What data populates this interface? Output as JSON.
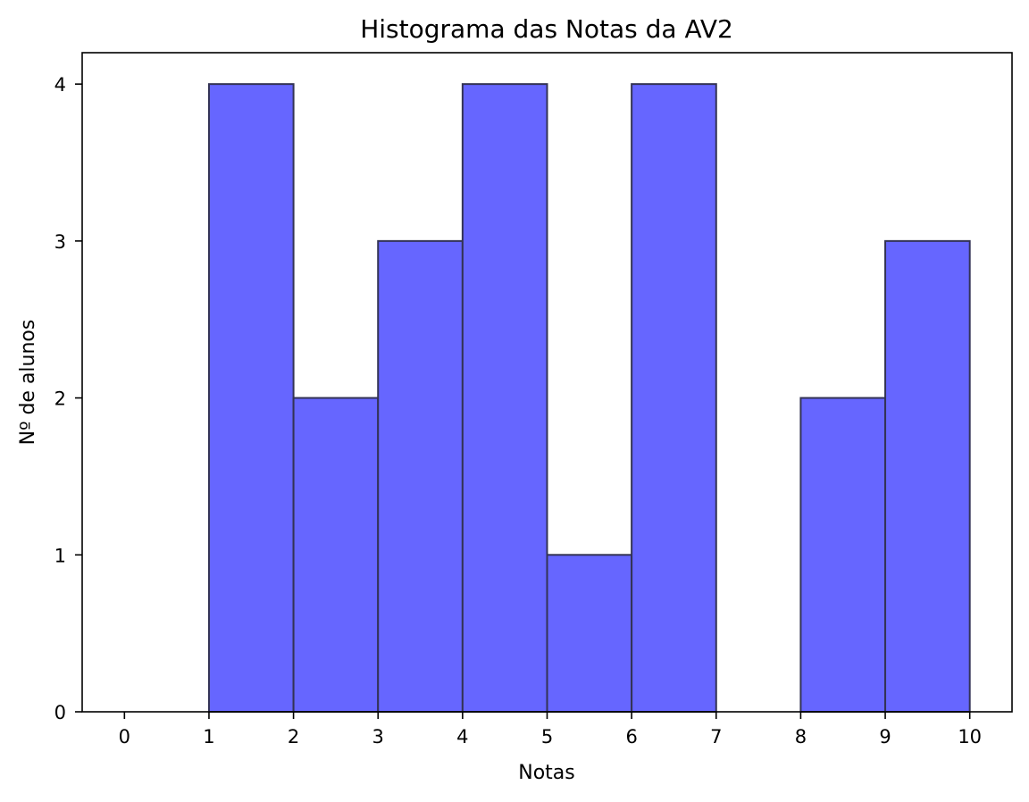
{
  "chart_data": {
    "type": "bar",
    "title": "Histograma das Notas da AV2",
    "xlabel": "Notas",
    "ylabel": "Nº de alunos",
    "bins": [
      {
        "start": 0,
        "end": 1,
        "count": 0
      },
      {
        "start": 1,
        "end": 2,
        "count": 4
      },
      {
        "start": 2,
        "end": 3,
        "count": 2
      },
      {
        "start": 3,
        "end": 4,
        "count": 3
      },
      {
        "start": 4,
        "end": 5,
        "count": 4
      },
      {
        "start": 5,
        "end": 6,
        "count": 1
      },
      {
        "start": 6,
        "end": 7,
        "count": 4
      },
      {
        "start": 7,
        "end": 8,
        "count": 0
      },
      {
        "start": 8,
        "end": 9,
        "count": 2
      },
      {
        "start": 9,
        "end": 10,
        "count": 3
      }
    ],
    "xlim": [
      -0.5,
      10.5
    ],
    "ylim": [
      0,
      4.2
    ],
    "xticks": [
      "0",
      "1",
      "2",
      "3",
      "4",
      "5",
      "6",
      "7",
      "8",
      "9",
      "10"
    ],
    "yticks": [
      "0",
      "1",
      "2",
      "3",
      "4"
    ],
    "grid": false,
    "bar_color": "#6666ff",
    "edge_color": "#333355"
  }
}
